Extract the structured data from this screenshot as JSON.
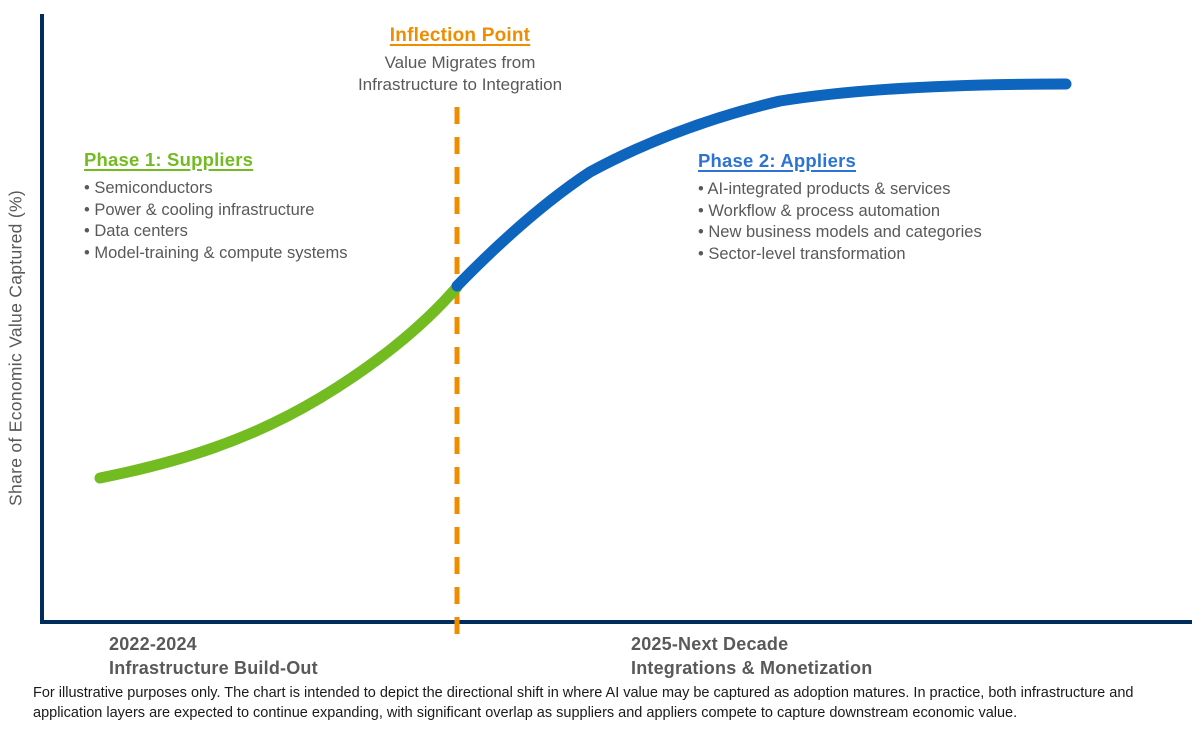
{
  "colors": {
    "axis_navy": "#002D5B",
    "phase1_green": "#72BC21",
    "phase2_blue": "#0E65BE",
    "phase2_title_blue": "#2B74D4",
    "inflection_orange": "#F08C00",
    "text_gray": "#58595B"
  },
  "annotation": {
    "title": "Inflection Point",
    "subtitle": "Value Migrates from\nInfrastructure to Integration"
  },
  "phase1": {
    "title": "Phase 1: Suppliers",
    "items": [
      "Semiconductors",
      "Power & cooling infrastructure",
      "Data centers",
      "Model-training & compute systems"
    ]
  },
  "phase2": {
    "title": "Phase 2: Appliers",
    "items": [
      "AI-integrated products & services",
      "Workflow & process automation",
      "New business models and categories",
      "Sector-level transformation"
    ]
  },
  "y_axis": {
    "label": "Share of Economic Value Captured (%)"
  },
  "x_axis": {
    "left_label": "2022-2024\nInfrastructure Build-Out",
    "right_label": "2025-Next Decade\nIntegrations & Monetization"
  },
  "footer": "For illustrative purposes only. The chart is intended to depict the directional shift in where AI value may be captured as adoption matures. In practice, both infrastructure and application layers are expected to continue expanding, with significant overlap as suppliers and appliers compete to capture downstream economic value.",
  "chart_data": {
    "type": "line",
    "title": "Inflection Point — Value Migrates from Infrastructure to Integration",
    "ylabel": "Share of Economic Value Captured (%)",
    "xlabel": "",
    "x_axis_segment_labels": [
      "2022-2024 Infrastructure Build-Out",
      "2025-Next Decade Integrations & Monetization"
    ],
    "axis_ticks": "none (illustrative S-curve, no numeric scale shown)",
    "grid": false,
    "legend_position": "inline phase callouts",
    "series": [
      {
        "name": "Phase 1: Suppliers",
        "color": "#72BC21",
        "x_norm": [
          0.05,
          0.1,
          0.16,
          0.24,
          0.31,
          0.36
        ],
        "y_pct": [
          24,
          26,
          29,
          37,
          46,
          55
        ]
      },
      {
        "name": "Phase 2: Appliers",
        "color": "#0E65BE",
        "x_norm": [
          0.36,
          0.41,
          0.47,
          0.57,
          0.66,
          0.78,
          0.89
        ],
        "y_pct": [
          55,
          64,
          74,
          82,
          86,
          88,
          88
        ]
      }
    ],
    "annotations": [
      {
        "label": "Inflection Point",
        "sublabel": "Value Migrates from Infrastructure to Integration",
        "type": "dashed-vertical-line",
        "x_norm": 0.36,
        "color": "#F08C00"
      }
    ]
  }
}
